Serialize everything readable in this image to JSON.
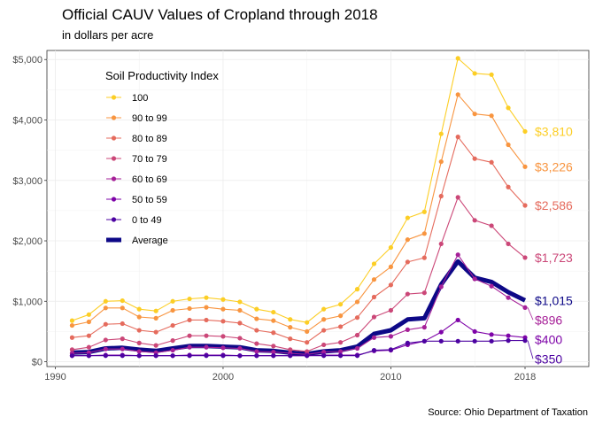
{
  "chart_data": {
    "type": "line",
    "title": "Official CAUV Values of Cropland through 2018",
    "subtitle": "in dollars per acre",
    "caption": "Source: Ohio Department of Taxation",
    "xlabel": "",
    "ylabel": "",
    "xlim": [
      1989.5,
      2021.8
    ],
    "ylim": [
      -80,
      5150
    ],
    "x_ticks": [
      1990,
      2000,
      2010,
      2018
    ],
    "x_tick_labels": [
      "1990",
      "2000",
      "2010",
      "2018"
    ],
    "y_ticks": [
      0,
      1000,
      2000,
      3000,
      4000,
      5000
    ],
    "y_tick_labels": [
      "$0",
      "$1,000",
      "$2,000",
      "$3,000",
      "$4,000",
      "$5,000"
    ],
    "grid": true,
    "legend": {
      "title": "Soil Productivity Index",
      "position": "top-left"
    },
    "x": [
      1991,
      1992,
      1993,
      1994,
      1995,
      1996,
      1997,
      1998,
      1999,
      2000,
      2001,
      2002,
      2003,
      2004,
      2005,
      2006,
      2007,
      2008,
      2009,
      2010,
      2011,
      2012,
      2013,
      2014,
      2015,
      2016,
      2017,
      2018
    ],
    "series": [
      {
        "name": "100",
        "color": "#fcce25",
        "end_label": "$3,810",
        "values": [
          680,
          780,
          1000,
          1010,
          870,
          840,
          1000,
          1040,
          1060,
          1030,
          990,
          870,
          820,
          700,
          650,
          870,
          950,
          1200,
          1620,
          1890,
          2380,
          2480,
          3770,
          5020,
          4770,
          4750,
          4200,
          3810
        ]
      },
      {
        "name": "90 to 99",
        "color": "#f89540",
        "end_label": "$3,226",
        "values": [
          600,
          660,
          890,
          890,
          740,
          720,
          850,
          880,
          900,
          870,
          850,
          710,
          680,
          570,
          500,
          700,
          760,
          990,
          1360,
          1570,
          2020,
          2120,
          3310,
          4420,
          4100,
          4070,
          3590,
          3226
        ]
      },
      {
        "name": "80 to 89",
        "color": "#e56b5d",
        "end_label": "$2,586",
        "values": [
          400,
          430,
          620,
          630,
          520,
          490,
          600,
          690,
          690,
          670,
          640,
          520,
          480,
          380,
          320,
          520,
          580,
          730,
          1070,
          1270,
          1650,
          1720,
          2740,
          3720,
          3360,
          3300,
          2890,
          2586
        ]
      },
      {
        "name": "70 to 79",
        "color": "#cb4778",
        "end_label": "$1,723",
        "values": [
          200,
          240,
          360,
          380,
          310,
          270,
          350,
          430,
          430,
          420,
          390,
          300,
          260,
          200,
          170,
          280,
          320,
          440,
          740,
          850,
          1120,
          1140,
          1950,
          2720,
          2340,
          2250,
          1950,
          1723
        ]
      },
      {
        "name": "60 to 69",
        "color": "#a62098",
        "end_label": "$896",
        "values": [
          140,
          150,
          210,
          210,
          170,
          150,
          190,
          240,
          240,
          230,
          220,
          170,
          160,
          140,
          120,
          160,
          170,
          220,
          400,
          420,
          530,
          570,
          1240,
          1770,
          1370,
          1250,
          1060,
          896
        ]
      },
      {
        "name": "50 to 59",
        "color": "#7e03a8",
        "end_label": "$400",
        "values": [
          100,
          100,
          110,
          110,
          100,
          100,
          100,
          110,
          110,
          110,
          100,
          100,
          100,
          100,
          100,
          110,
          110,
          110,
          180,
          190,
          280,
          340,
          490,
          690,
          500,
          450,
          430,
          400
        ]
      },
      {
        "name": "0 to 49",
        "color": "#4c02a1",
        "end_label": "$350",
        "values": [
          100,
          100,
          100,
          100,
          100,
          100,
          100,
          100,
          100,
          100,
          100,
          100,
          100,
          100,
          100,
          100,
          100,
          100,
          190,
          200,
          310,
          340,
          340,
          340,
          340,
          340,
          350,
          350
        ]
      },
      {
        "name": "Average",
        "color": "#0d0887",
        "end_label": "$1,015",
        "thick": true,
        "values": [
          150,
          160,
          220,
          230,
          200,
          180,
          220,
          260,
          260,
          250,
          240,
          190,
          180,
          150,
          130,
          170,
          190,
          250,
          460,
          520,
          700,
          720,
          1280,
          1660,
          1390,
          1320,
          1150,
          1015
        ]
      }
    ]
  }
}
